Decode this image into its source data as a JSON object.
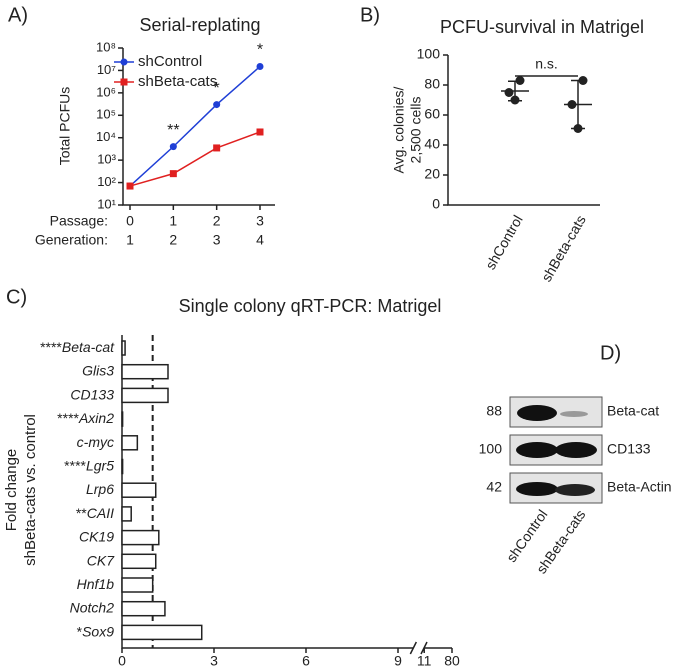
{
  "chart_data": [
    {
      "type": "line",
      "panel": "A)",
      "title": "Serial-replating",
      "y_label": "Total PCFUs",
      "x_label": "Passage:",
      "x": [
        0,
        1,
        2,
        3
      ],
      "generation_label": "Generation:",
      "generation": [
        1,
        2,
        3,
        4
      ],
      "series": [
        {
          "name": "shControl",
          "color": "#1f3fd6",
          "values": [
            70,
            4000,
            300000,
            15000000
          ]
        },
        {
          "name": "shBeta-cats",
          "color": "#e02020",
          "values": [
            70,
            250,
            3500,
            18000
          ]
        }
      ],
      "annotations": [
        {
          "x": 1,
          "text": "**"
        },
        {
          "x": 2,
          "text": "*"
        },
        {
          "x": 3,
          "text": "*"
        }
      ],
      "log_scale": true,
      "ylim": [
        10,
        100000000
      ],
      "yticks": [
        {
          "value": 10,
          "label": "10¹"
        },
        {
          "value": 100,
          "label": "10²"
        },
        {
          "value": 1000,
          "label": "10³"
        },
        {
          "value": 10000,
          "label": "10⁴"
        },
        {
          "value": 100000,
          "label": "10⁵"
        },
        {
          "value": 1000000,
          "label": "10⁶"
        },
        {
          "value": 10000000,
          "label": "10⁷"
        },
        {
          "value": 100000000,
          "label": "10⁸"
        }
      ],
      "legend": "top-left"
    },
    {
      "type": "dot",
      "panel": "B)",
      "title": "PCFU-survival in Matrigel",
      "y_label": [
        "Avg. colonies/",
        "2,500 cells"
      ],
      "categories": [
        "shControl",
        "shBeta-cats"
      ],
      "points": [
        [
          83,
          75,
          70
        ],
        [
          83,
          67,
          51
        ]
      ],
      "mean": [
        76,
        67
      ],
      "sd": [
        6.5,
        16
      ],
      "annotation": "n.s.",
      "color": "#222222",
      "ylim": [
        0,
        100
      ],
      "yticks": [
        0,
        20,
        40,
        60,
        80,
        100
      ]
    },
    {
      "type": "hbar",
      "panel": "C)",
      "title": "Single colony qRT-PCR: Matrigel",
      "y_label": [
        "Fold change",
        "shBeta-cats vs. control"
      ],
      "categories": [
        "Beta-cat",
        "Glis3",
        "CD133",
        "Axin2",
        "c-myc",
        "Lgr5",
        "Lrp6",
        "CAII",
        "CK19",
        "CK7",
        "Hnf1b",
        "Notch2",
        "Sox9"
      ],
      "significance": [
        "****",
        null,
        null,
        "****",
        null,
        "****",
        null,
        "**",
        null,
        null,
        null,
        null,
        "*"
      ],
      "values": [
        0.1,
        1.5,
        1.5,
        0.02,
        0.5,
        0.02,
        1.1,
        0.3,
        1.2,
        1.1,
        1.0,
        1.4,
        2.6
      ],
      "reference_line": 1,
      "xlim": [
        0,
        80
      ],
      "xbreak": [
        9.5,
        10.5
      ],
      "xticks": [
        0,
        3,
        6,
        9,
        11,
        80
      ]
    }
  ],
  "blot": {
    "panel": "D)",
    "rows": [
      {
        "size": "88",
        "label": "Beta-cat"
      },
      {
        "size": "100",
        "label": "CD133"
      },
      {
        "size": "42",
        "label": "Beta-Actin"
      }
    ],
    "lanes": [
      "shControl",
      "shBeta-cats"
    ]
  }
}
